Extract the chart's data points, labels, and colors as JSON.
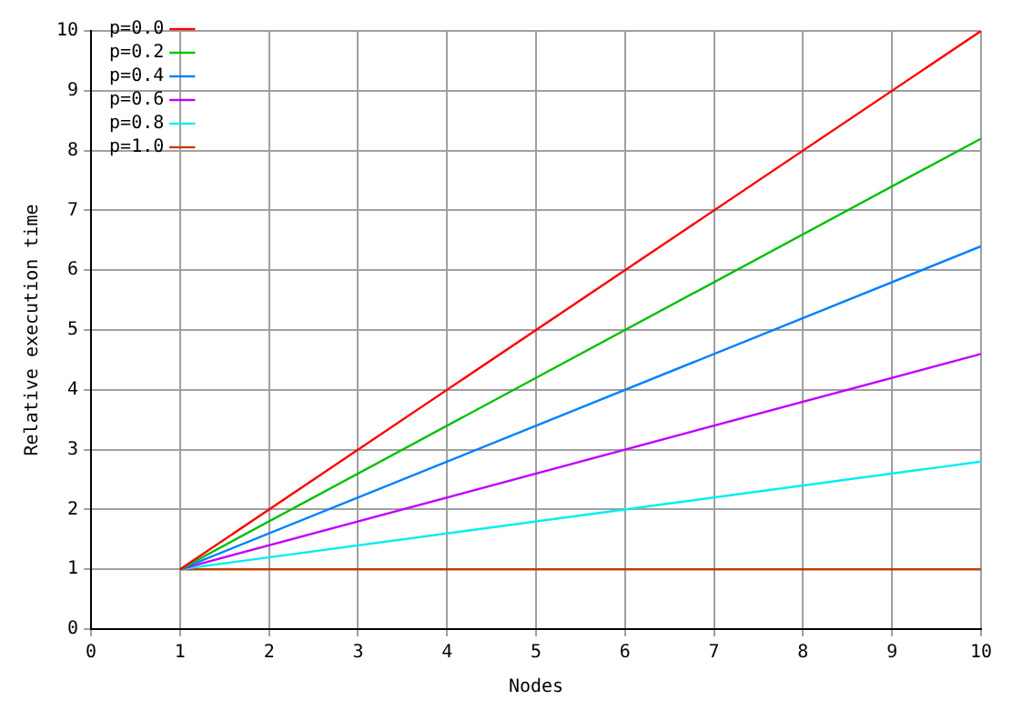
{
  "chart_data": {
    "type": "line",
    "xlabel": "Nodes",
    "ylabel": "Relative execution time",
    "xlim": [
      0,
      10
    ],
    "ylim": [
      0,
      10
    ],
    "xticks": [
      0,
      1,
      2,
      3,
      4,
      5,
      6,
      7,
      8,
      9,
      10
    ],
    "yticks": [
      0,
      1,
      2,
      3,
      4,
      5,
      6,
      7,
      8,
      9,
      10
    ],
    "grid": true,
    "legend": "top left",
    "x": [
      1,
      10
    ],
    "series": [
      {
        "name": "p=0.0",
        "color": "#ff0000",
        "values": [
          1,
          10
        ]
      },
      {
        "name": "p=0.2",
        "color": "#00c000",
        "values": [
          1,
          8.2
        ]
      },
      {
        "name": "p=0.4",
        "color": "#0080ff",
        "values": [
          1,
          6.4
        ]
      },
      {
        "name": "p=0.6",
        "color": "#c000ff",
        "values": [
          1,
          4.6
        ]
      },
      {
        "name": "p=0.8",
        "color": "#00eeee",
        "values": [
          1,
          2.8
        ]
      },
      {
        "name": "p=1.0",
        "color": "#c04000",
        "values": [
          1,
          1
        ]
      }
    ]
  }
}
